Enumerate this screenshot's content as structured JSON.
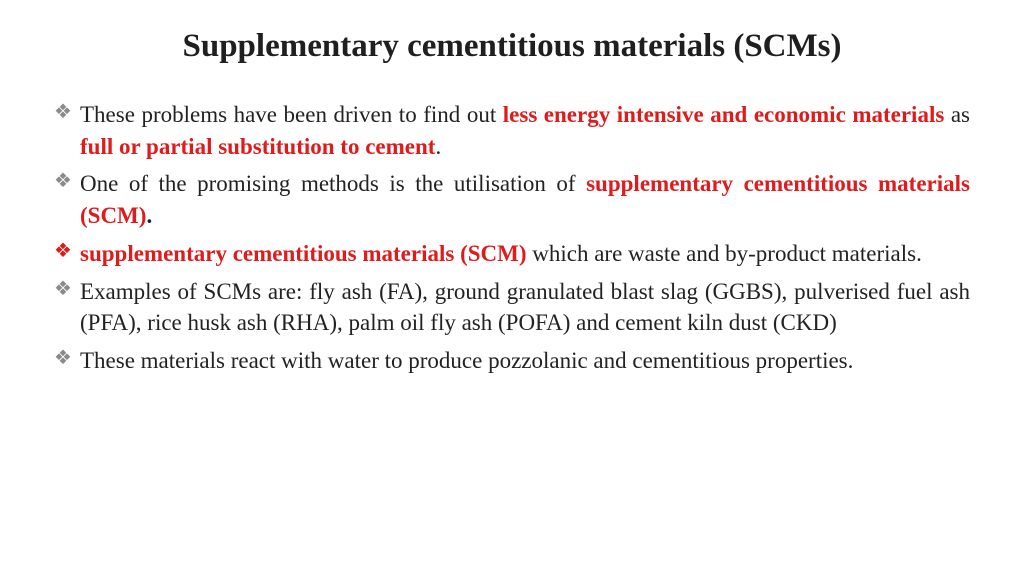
{
  "title": "Supplementary cementitious materials (SCMs)",
  "bullets": [
    {
      "segments": [
        {
          "t": "These problems have been driven to find out ",
          "cls": ""
        },
        {
          "t": "less energy intensive and economic materials",
          "cls": "red"
        },
        {
          "t": " as ",
          "cls": ""
        },
        {
          "t": "full or partial substitution to cement",
          "cls": "red"
        },
        {
          "t": ".",
          "cls": ""
        }
      ],
      "marker": "gray"
    },
    {
      "segments": [
        {
          "t": "One of the promising methods is the utilisation of ",
          "cls": ""
        },
        {
          "t": "supplementary cementitious materials (SCM)",
          "cls": "red"
        },
        {
          "t": ".",
          "cls": "bold"
        }
      ],
      "marker": "gray"
    },
    {
      "segments": [
        {
          "t": "supplementary cementitious materials (SCM)",
          "cls": "red"
        },
        {
          "t": " which are waste and by-product materials.",
          "cls": ""
        }
      ],
      "marker": "red"
    },
    {
      "segments": [
        {
          "t": "Examples of SCMs are: fly ash (FA), ground granulated blast slag (GGBS), pulverised fuel ash (PFA), rice husk ash (RHA), palm oil fly ash (POFA) and cement kiln dust (CKD)",
          "cls": ""
        }
      ],
      "marker": "gray"
    },
    {
      "segments": [
        {
          "t": "These materials react with water to produce pozzolanic and cementitious properties.",
          "cls": ""
        }
      ],
      "marker": "gray"
    }
  ],
  "colors": {
    "text": "#222222",
    "highlight": "#e01b1b",
    "marker_gray": "#8a8a8a",
    "background": "#ffffff"
  },
  "typography": {
    "title_fontsize": 33,
    "body_fontsize": 23,
    "font_family": "Times New Roman"
  }
}
